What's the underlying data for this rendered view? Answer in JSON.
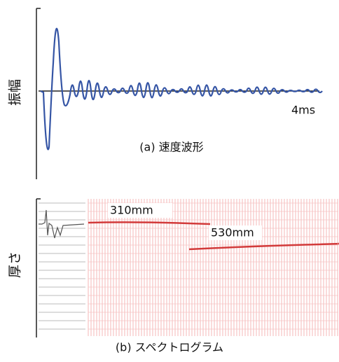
{
  "panel_a": {
    "y_label": "振幅",
    "x_annotation": "4ms",
    "caption": "(a) 速度波形"
  },
  "panel_b": {
    "y_label": "厚さ",
    "annotations": [
      "310mm",
      "530mm"
    ],
    "caption": "(b) スペクトログラム"
  }
}
